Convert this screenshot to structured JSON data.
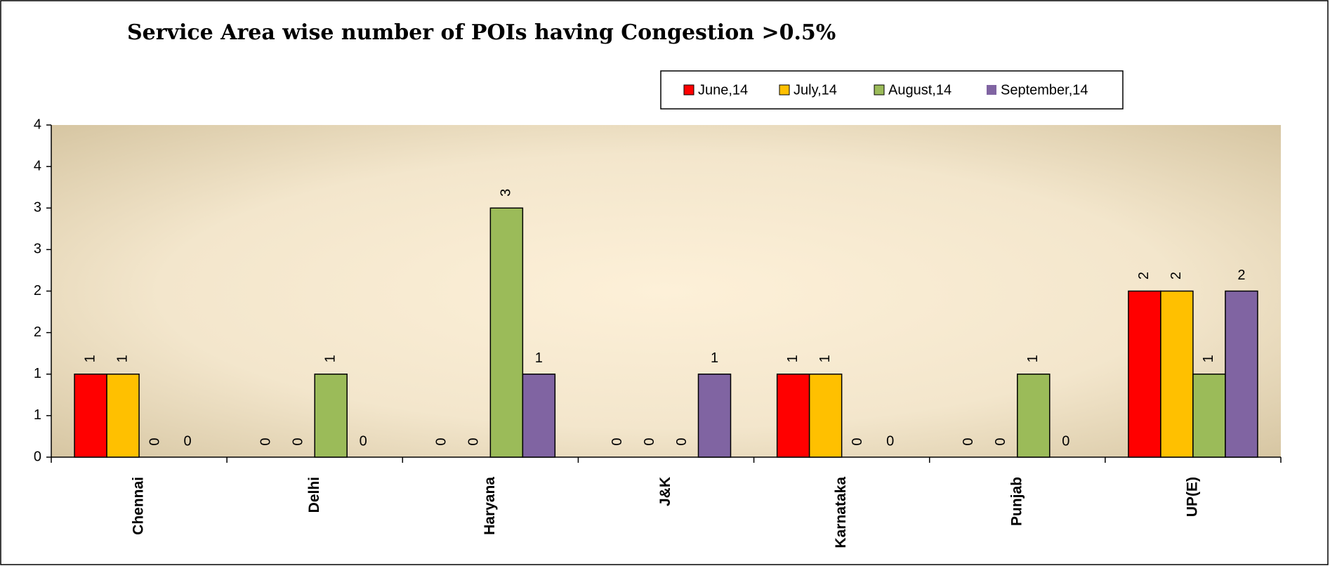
{
  "chart_data": {
    "type": "bar",
    "title": "Service Area wise   number of POIs having Congestion >0.5%",
    "categories": [
      "Chennai",
      "Delhi",
      "Haryana",
      "J&K",
      "Karnataka",
      "Punjab",
      "UP(E)"
    ],
    "series": [
      {
        "name": "June,14",
        "color": "#ff0000",
        "values": [
          1,
          0,
          0,
          0,
          1,
          0,
          2
        ]
      },
      {
        "name": "July,14",
        "color": "#ffc000",
        "values": [
          1,
          0,
          0,
          0,
          1,
          0,
          2
        ]
      },
      {
        "name": "August,14",
        "color": "#9bbb59",
        "values": [
          0,
          1,
          3,
          0,
          0,
          1,
          1
        ]
      },
      {
        "name": "September,14",
        "color": "#8064a2",
        "values": [
          0,
          0,
          1,
          1,
          0,
          0,
          2
        ]
      }
    ],
    "ylim": [
      0,
      4
    ],
    "yticks": [
      0,
      {
        "value": 0.5,
        "label": "1"
      },
      1,
      {
        "value": 1.5,
        "label": "2"
      },
      2,
      {
        "value": 2.5,
        "label": "3"
      },
      3,
      {
        "value": 3.5,
        "label": "4"
      },
      4
    ],
    "legend": "top-right"
  }
}
